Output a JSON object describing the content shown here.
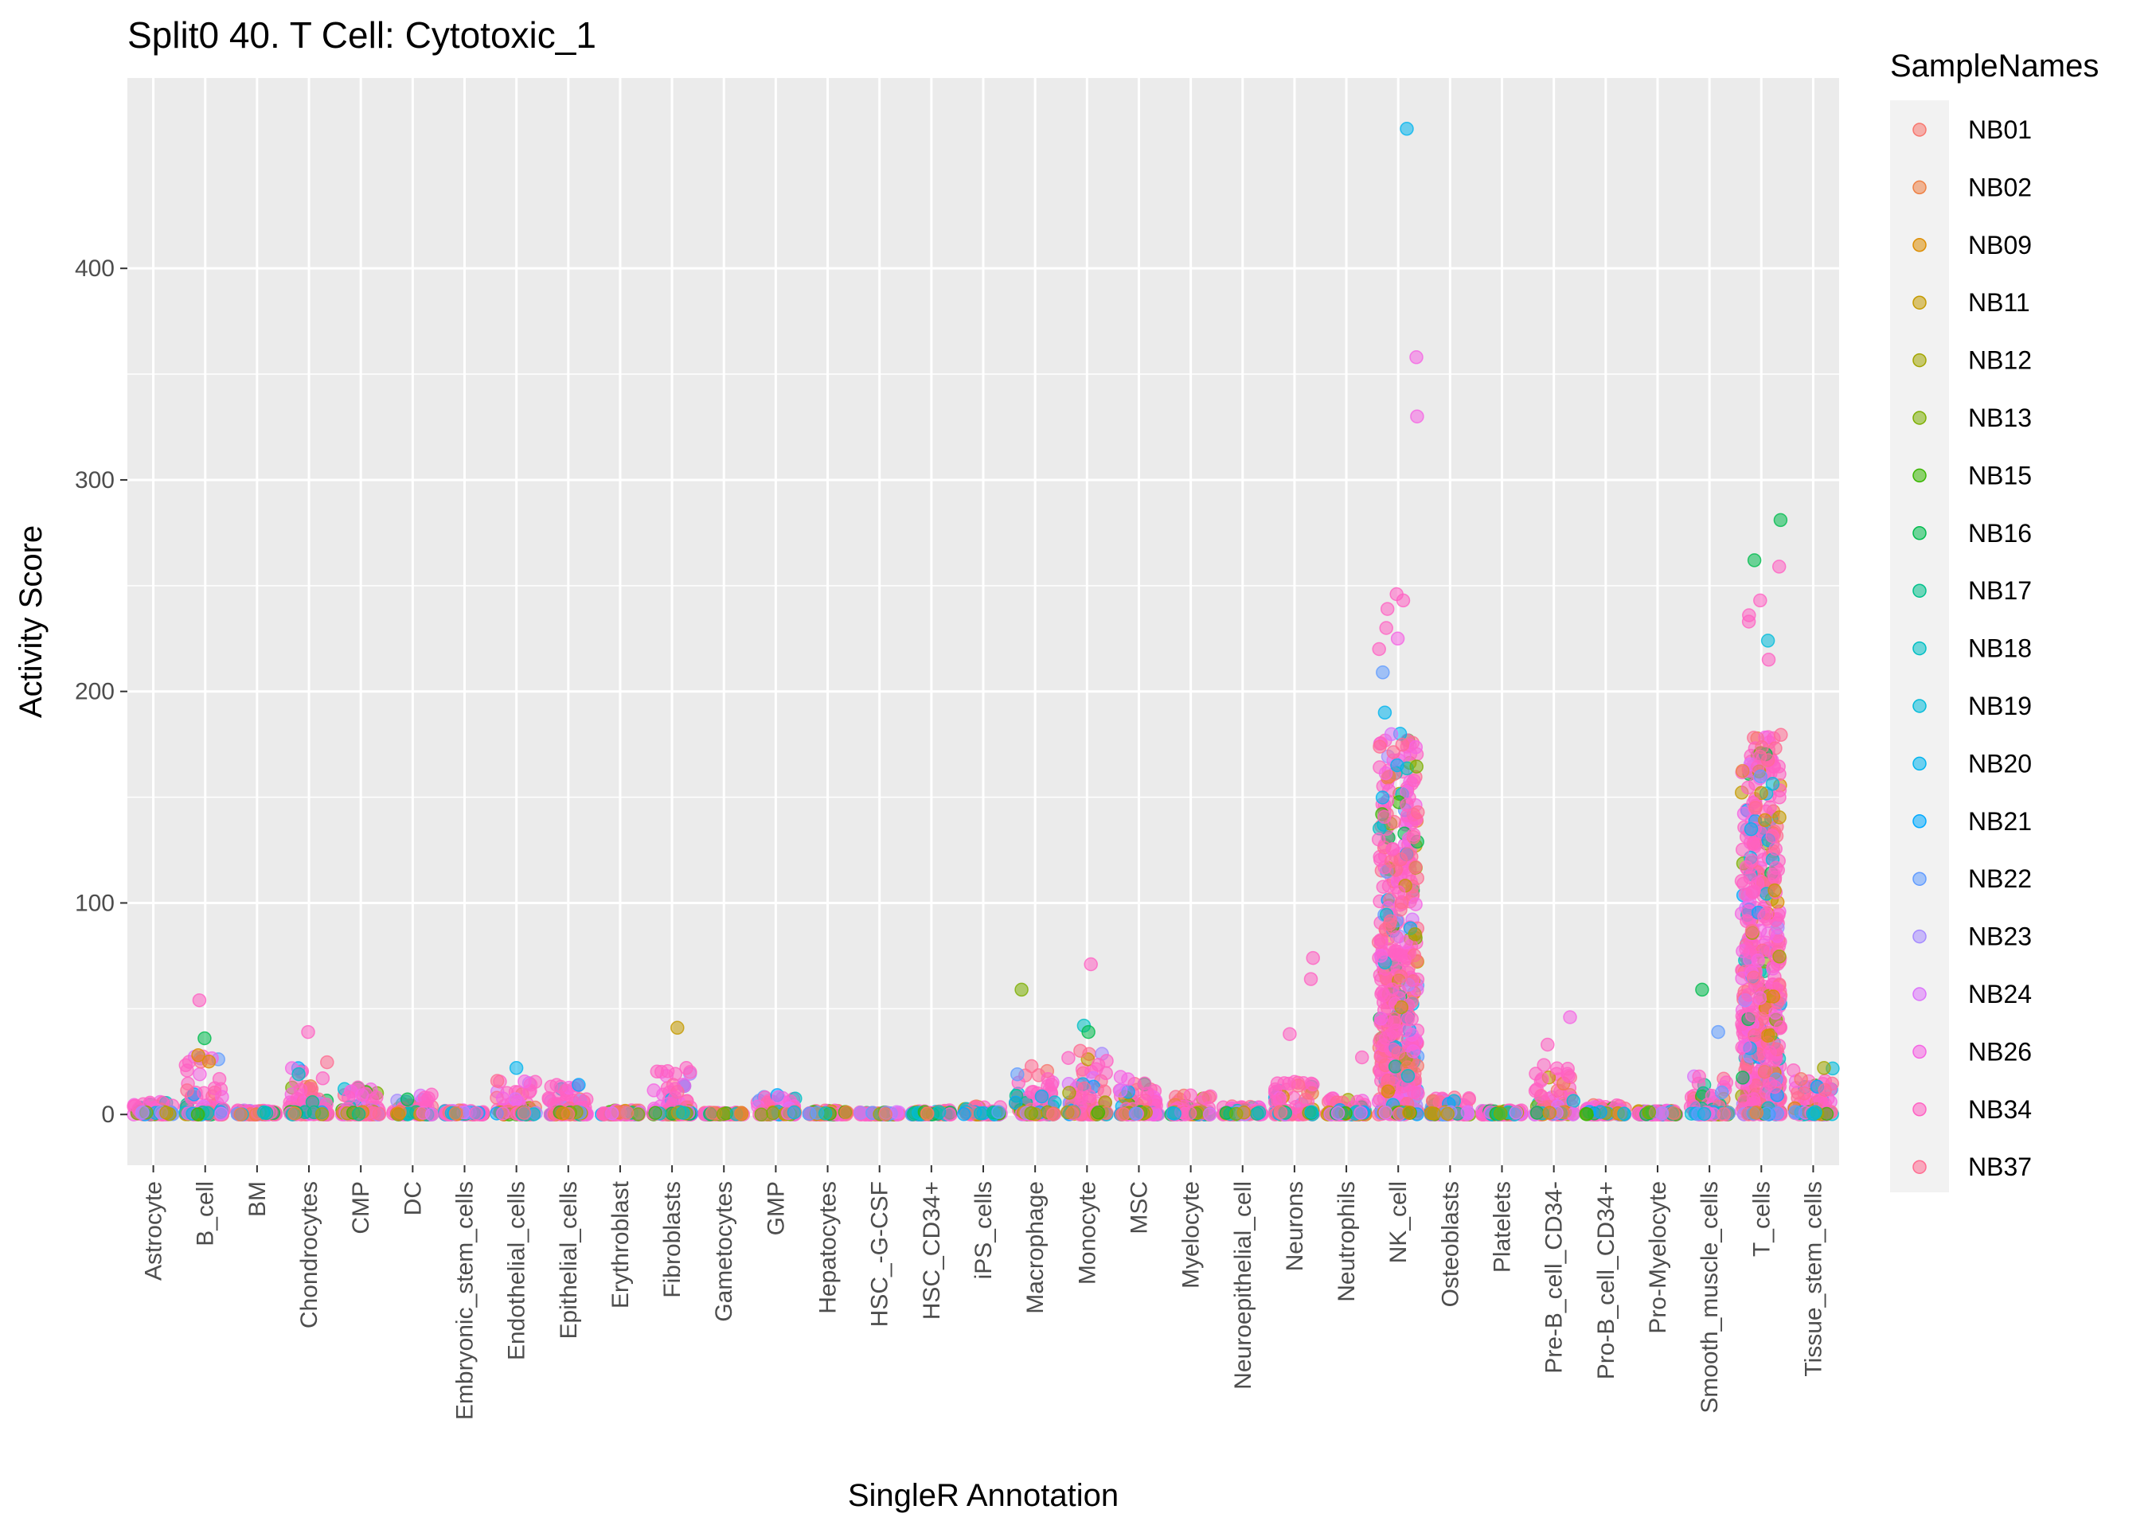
{
  "chart_data": {
    "type": "scatter",
    "title": "Split0 40. T Cell: Cytotoxic_1",
    "xlabel": "SingleR Annotation",
    "ylabel": "Activity Score",
    "ylim": [
      -24,
      490
    ],
    "yticks": [
      0,
      100,
      200,
      300,
      400
    ],
    "grid": true,
    "legend": {
      "title": "SampleNames",
      "placement": "right",
      "entries": [
        "NB01",
        "NB02",
        "NB09",
        "NB11",
        "NB12",
        "NB13",
        "NB15",
        "NB16",
        "NB17",
        "NB18",
        "NB19",
        "NB20",
        "NB21",
        "NB22",
        "NB23",
        "NB24",
        "NB26",
        "NB34",
        "NB37"
      ]
    },
    "series_colors": {
      "NB01": "#F8766D",
      "NB02": "#EE8044",
      "NB09": "#DD8D00",
      "NB11": "#C49A00",
      "NB12": "#A3A500",
      "NB13": "#7CAE00",
      "NB15": "#39B600",
      "NB16": "#00BB4E",
      "NB17": "#00C08B",
      "NB18": "#00BFC4",
      "NB19": "#00BBDA",
      "NB20": "#00B4EF",
      "NB21": "#00A9FF",
      "NB22": "#619CFF",
      "NB23": "#A58AFF",
      "NB24": "#DB72FB",
      "NB26": "#F564E3",
      "NB34": "#FF61C3",
      "NB37": "#FF6C91"
    },
    "categories": [
      "Astrocyte",
      "B_cell",
      "BM",
      "Chondrocytes",
      "CMP",
      "DC",
      "Embryonic_stem_cells",
      "Endothelial_cells",
      "Epithelial_cells",
      "Erythroblast",
      "Fibroblasts",
      "Gametocytes",
      "GMP",
      "Hepatocytes",
      "HSC_-G-CSF",
      "HSC_CD34+",
      "iPS_cells",
      "Macrophage",
      "Monocyte",
      "MSC",
      "Myelocyte",
      "Neuroepithelial_cell",
      "Neurons",
      "Neutrophils",
      "NK_cell",
      "Osteoblasts",
      "Platelets",
      "Pre-B_cell_CD34-",
      "Pro-B_cell_CD34+",
      "Pro-Myelocyte",
      "Smooth_muscle_cells",
      "T_cells",
      "Tissue_stem_cells"
    ],
    "category_summary": [
      {
        "category": "Astrocyte",
        "max": 6,
        "bulk": 4
      },
      {
        "category": "B_cell",
        "max": 28,
        "bulk": 12
      },
      {
        "category": "BM",
        "max": 2,
        "bulk": 1
      },
      {
        "category": "Chondrocytes",
        "max": 25,
        "bulk": 8
      },
      {
        "category": "CMP",
        "max": 14,
        "bulk": 3
      },
      {
        "category": "DC",
        "max": 12,
        "bulk": 8
      },
      {
        "category": "Embryonic_stem_cells",
        "max": 2,
        "bulk": 1
      },
      {
        "category": "Endothelial_cells",
        "max": 16,
        "bulk": 8
      },
      {
        "category": "Epithelial_cells",
        "max": 14,
        "bulk": 5
      },
      {
        "category": "Erythroblast",
        "max": 2,
        "bulk": 1
      },
      {
        "category": "Fibroblasts",
        "max": 22,
        "bulk": 8
      },
      {
        "category": "Gametocytes",
        "max": 1,
        "bulk": 0.5
      },
      {
        "category": "GMP",
        "max": 10,
        "bulk": 4
      },
      {
        "category": "Hepatocytes",
        "max": 2,
        "bulk": 1
      },
      {
        "category": "HSC_-G-CSF",
        "max": 1,
        "bulk": 0.5
      },
      {
        "category": "HSC_CD34+",
        "max": 2,
        "bulk": 1
      },
      {
        "category": "iPS_cells",
        "max": 4,
        "bulk": 2
      },
      {
        "category": "Macrophage",
        "max": 23,
        "bulk": 10
      },
      {
        "category": "Monocyte",
        "max": 36,
        "bulk": 20
      },
      {
        "category": "MSC",
        "max": 20,
        "bulk": 8
      },
      {
        "category": "Myelocyte",
        "max": 9,
        "bulk": 2
      },
      {
        "category": "Neuroepithelial_cell",
        "max": 4,
        "bulk": 2
      },
      {
        "category": "Neurons",
        "max": 18,
        "bulk": 12
      },
      {
        "category": "Neutrophils",
        "max": 8,
        "bulk": 5
      },
      {
        "category": "NK_cell",
        "max": 245,
        "bulk": 180
      },
      {
        "category": "Osteoblasts",
        "max": 8,
        "bulk": 2
      },
      {
        "category": "Platelets",
        "max": 2,
        "bulk": 1
      },
      {
        "category": "Pre-B_cell_CD34-",
        "max": 24,
        "bulk": 14
      },
      {
        "category": "Pro-B_cell_CD34+",
        "max": 5,
        "bulk": 3
      },
      {
        "category": "Pro-Myelocyte",
        "max": 2,
        "bulk": 1
      },
      {
        "category": "Smooth_muscle_cells",
        "max": 18,
        "bulk": 12
      },
      {
        "category": "T_cells",
        "max": 244,
        "bulk": 180
      },
      {
        "category": "Tissue_stem_cells",
        "max": 22,
        "bulk": 14
      }
    ],
    "outliers": [
      {
        "category": "NK_cell",
        "y": 466,
        "sample": "NB20"
      },
      {
        "category": "NK_cell",
        "y": 358,
        "sample": "NB26"
      },
      {
        "category": "NK_cell",
        "y": 330,
        "sample": "NB26"
      },
      {
        "category": "NK_cell",
        "y": 246,
        "sample": "NB34"
      },
      {
        "category": "NK_cell",
        "y": 243,
        "sample": "NB34"
      },
      {
        "category": "NK_cell",
        "y": 239,
        "sample": "NB34"
      },
      {
        "category": "NK_cell",
        "y": 230,
        "sample": "NB34"
      },
      {
        "category": "NK_cell",
        "y": 225,
        "sample": "NB26"
      },
      {
        "category": "NK_cell",
        "y": 220,
        "sample": "NB34"
      },
      {
        "category": "NK_cell",
        "y": 209,
        "sample": "NB22"
      },
      {
        "category": "NK_cell",
        "y": 190,
        "sample": "NB20"
      },
      {
        "category": "T_cells",
        "y": 281,
        "sample": "NB16"
      },
      {
        "category": "T_cells",
        "y": 262,
        "sample": "NB16"
      },
      {
        "category": "T_cells",
        "y": 259,
        "sample": "NB34"
      },
      {
        "category": "T_cells",
        "y": 243,
        "sample": "NB34"
      },
      {
        "category": "T_cells",
        "y": 236,
        "sample": "NB34"
      },
      {
        "category": "T_cells",
        "y": 233,
        "sample": "NB34"
      },
      {
        "category": "T_cells",
        "y": 224,
        "sample": "NB19"
      },
      {
        "category": "T_cells",
        "y": 215,
        "sample": "NB34"
      },
      {
        "category": "B_cell",
        "y": 54,
        "sample": "NB34"
      },
      {
        "category": "B_cell",
        "y": 36,
        "sample": "NB16"
      },
      {
        "category": "B_cell",
        "y": 28,
        "sample": "NB09"
      },
      {
        "category": "Chondrocytes",
        "y": 39,
        "sample": "NB34"
      },
      {
        "category": "Fibroblasts",
        "y": 41,
        "sample": "NB11"
      },
      {
        "category": "Macrophage",
        "y": 59,
        "sample": "NB13"
      },
      {
        "category": "Monocyte",
        "y": 71,
        "sample": "NB34"
      },
      {
        "category": "Monocyte",
        "y": 42,
        "sample": "NB18"
      },
      {
        "category": "Monocyte",
        "y": 39,
        "sample": "NB16"
      },
      {
        "category": "Neurons",
        "y": 74,
        "sample": "NB34"
      },
      {
        "category": "Neurons",
        "y": 64,
        "sample": "NB34"
      },
      {
        "category": "Neurons",
        "y": 38,
        "sample": "NB34"
      },
      {
        "category": "Neutrophils",
        "y": 27,
        "sample": "NB34"
      },
      {
        "category": "Pre-B_cell_CD34-",
        "y": 46,
        "sample": "NB26"
      },
      {
        "category": "Pre-B_cell_CD34-",
        "y": 33,
        "sample": "NB34"
      },
      {
        "category": "Smooth_muscle_cells",
        "y": 59,
        "sample": "NB16"
      },
      {
        "category": "Smooth_muscle_cells",
        "y": 39,
        "sample": "NB22"
      },
      {
        "category": "Endothelial_cells",
        "y": 22,
        "sample": "NB20"
      },
      {
        "category": "Epithelial_cells",
        "y": 14,
        "sample": "NB21"
      },
      {
        "category": "Myelocyte",
        "y": 9,
        "sample": "NB34"
      },
      {
        "category": "Tissue_stem_cells",
        "y": 22,
        "sample": "NB12"
      }
    ]
  }
}
